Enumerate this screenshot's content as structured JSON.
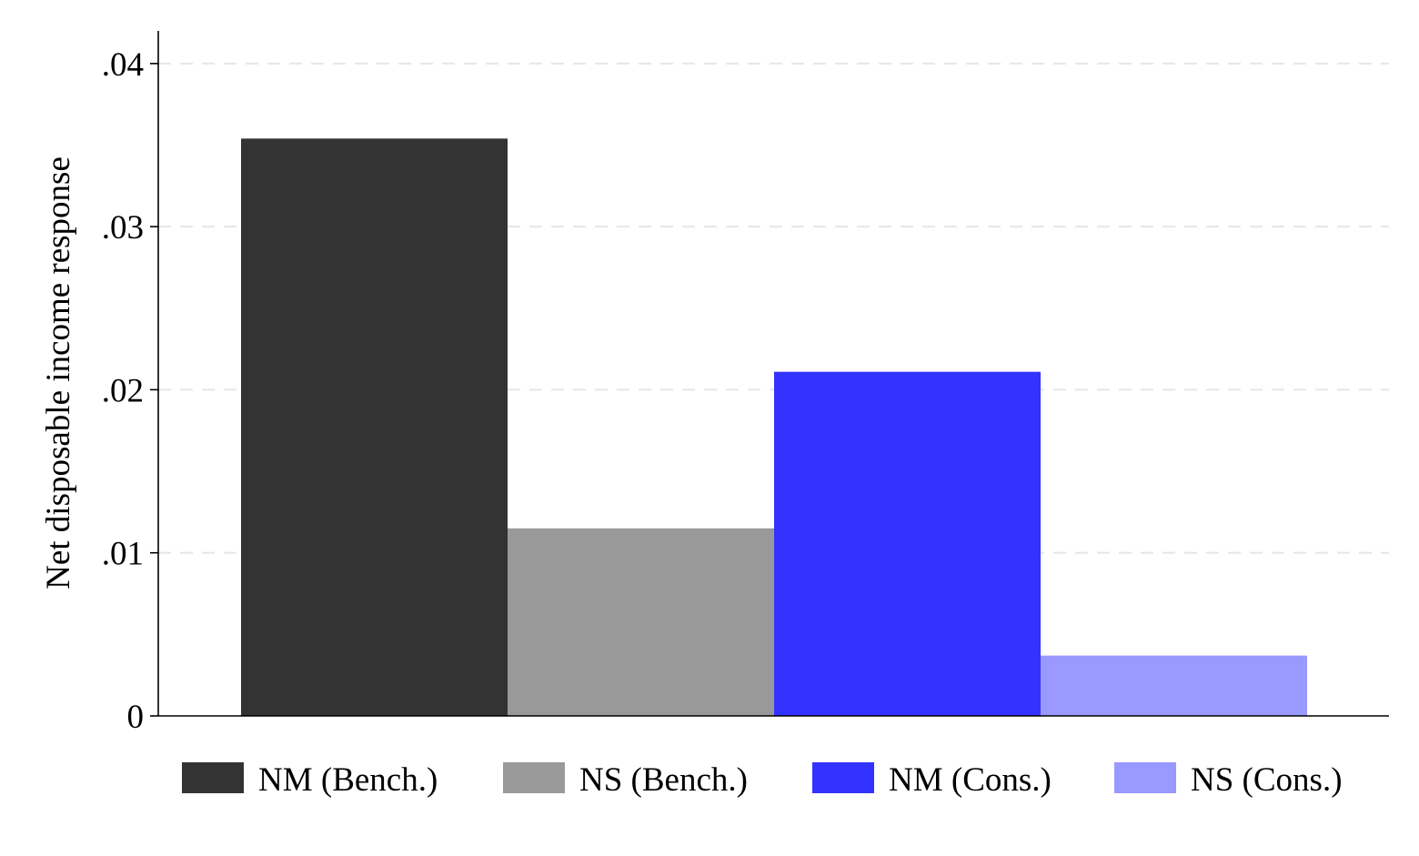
{
  "chart_data": {
    "type": "bar",
    "title": "",
    "xlabel": "",
    "ylabel": "Net disposable income response",
    "ylim": [
      0,
      0.042
    ],
    "yticks": [
      0,
      0.01,
      0.02,
      0.03,
      0.04
    ],
    "ytick_labels": [
      "0",
      ".01",
      ".02",
      ".03",
      ".04"
    ],
    "grid": true,
    "legend_position": "bottom",
    "series": [
      {
        "name": "NM (Bench.)",
        "value": 0.0354,
        "color": "#333333"
      },
      {
        "name": "NS (Bench.)",
        "value": 0.0115,
        "color": "#999999"
      },
      {
        "name": "NM (Cons.)",
        "value": 0.0211,
        "color": "#3333ff"
      },
      {
        "name": "NS (Cons.)",
        "value": 0.0037,
        "color": "#9999ff"
      }
    ]
  }
}
